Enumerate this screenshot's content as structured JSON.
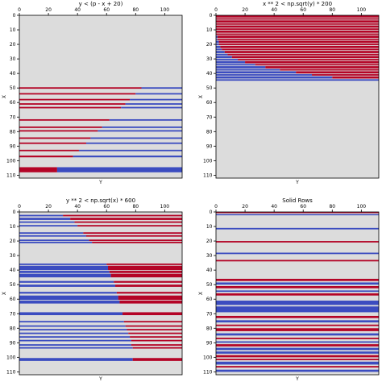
{
  "colors": {
    "background_fill": "#dcdcdc",
    "red": "#b40426",
    "blue": "#3b4cc0",
    "axes_edge": "#000000"
  },
  "chart_data": [
    {
      "type": "heatmap",
      "title": "y < (p - x + 20)",
      "xlabel": "Y",
      "ylabel": "X",
      "xlim": [
        0,
        112
      ],
      "ylim": [
        0,
        112
      ],
      "x_ticks": [
        0,
        20,
        40,
        60,
        80,
        100
      ],
      "y_ticks": [
        0,
        10,
        20,
        30,
        40,
        50,
        60,
        70,
        80,
        90,
        100,
        110
      ],
      "x_axis_position": "top",
      "grid": false,
      "rows": [
        {
          "y": 49.5,
          "h": 1,
          "red_end": 84
        },
        {
          "y": 53.5,
          "h": 1,
          "red_end": 80
        },
        {
          "y": 57.5,
          "h": 1,
          "red_end": 76
        },
        {
          "y": 60.5,
          "h": 1,
          "red_end": 73
        },
        {
          "y": 63,
          "h": 1,
          "red_end": 70
        },
        {
          "y": 71.5,
          "h": 1,
          "red_end": 62
        },
        {
          "y": 76.5,
          "h": 1,
          "red_end": 57
        },
        {
          "y": 79,
          "h": 1,
          "red_end": 54
        },
        {
          "y": 84,
          "h": 1,
          "red_end": 49
        },
        {
          "y": 87.5,
          "h": 1,
          "red_end": 46
        },
        {
          "y": 92.5,
          "h": 1,
          "red_end": 41
        },
        {
          "y": 96.5,
          "h": 1.2,
          "red_end": 37
        },
        {
          "y": 104.5,
          "h": 3.5,
          "red_end": 26
        }
      ]
    },
    {
      "type": "heatmap",
      "title": "x ** 2 < np.sqrt(y) * 200",
      "xlabel": "Y",
      "ylabel": "X",
      "xlim": [
        0,
        112
      ],
      "ylim": [
        0,
        112
      ],
      "x_ticks": [
        0,
        20,
        40,
        60,
        80,
        100
      ],
      "y_ticks": [
        0,
        10,
        20,
        30,
        40,
        50,
        60,
        70,
        80,
        90,
        100,
        110
      ],
      "x_axis_position": "top",
      "grid": false,
      "rows": [
        {
          "y": 0,
          "h": 1.5,
          "blue_end": 0
        },
        {
          "y": 2,
          "h": 1,
          "blue_end": 0
        },
        {
          "y": 3.5,
          "h": 1.5,
          "blue_end": 0
        },
        {
          "y": 5.5,
          "h": 1,
          "blue_end": 0
        },
        {
          "y": 7,
          "h": 1.5,
          "blue_end": 0
        },
        {
          "y": 9,
          "h": 1,
          "blue_end": 0
        },
        {
          "y": 10.5,
          "h": 1.5,
          "blue_end": 0
        },
        {
          "y": 12.5,
          "h": 1,
          "blue_end": 0
        },
        {
          "y": 14,
          "h": 1.5,
          "blue_end": 1
        },
        {
          "y": 16,
          "h": 1,
          "blue_end": 1
        },
        {
          "y": 17.5,
          "h": 1.5,
          "blue_end": 2
        },
        {
          "y": 19.5,
          "h": 1,
          "blue_end": 2
        },
        {
          "y": 21,
          "h": 1.5,
          "blue_end": 3
        },
        {
          "y": 23,
          "h": 1,
          "blue_end": 4
        },
        {
          "y": 24.5,
          "h": 1.5,
          "blue_end": 6
        },
        {
          "y": 26.5,
          "h": 1,
          "blue_end": 8
        },
        {
          "y": 28,
          "h": 1.5,
          "blue_end": 11
        },
        {
          "y": 30,
          "h": 1,
          "blue_end": 15
        },
        {
          "y": 31.5,
          "h": 1.5,
          "blue_end": 20
        },
        {
          "y": 33.5,
          "h": 1,
          "blue_end": 27
        },
        {
          "y": 35,
          "h": 1.5,
          "blue_end": 34
        },
        {
          "y": 37,
          "h": 1,
          "blue_end": 44
        },
        {
          "y": 38.5,
          "h": 1.5,
          "blue_end": 55
        },
        {
          "y": 40.5,
          "h": 1,
          "blue_end": 66
        },
        {
          "y": 42,
          "h": 1.5,
          "blue_end": 80
        },
        {
          "y": 44,
          "h": 1,
          "blue_end": 112
        }
      ]
    },
    {
      "type": "heatmap",
      "title": "y ** 2 < np.sqrt(x) * 600",
      "xlabel": "Y",
      "ylabel": "X",
      "xlim": [
        0,
        112
      ],
      "ylim": [
        0,
        112
      ],
      "x_ticks": [
        0,
        20,
        40,
        60,
        80,
        100
      ],
      "y_ticks": [
        0,
        10,
        20,
        30,
        40,
        50,
        60,
        70,
        80,
        90,
        100,
        110
      ],
      "x_axis_position": "top",
      "grid": false,
      "rows": [
        {
          "y": 2,
          "h": 1,
          "blue_end": 30
        },
        {
          "y": 4,
          "h": 1.5,
          "blue_end": 35
        },
        {
          "y": 6.5,
          "h": 1,
          "blue_end": 38
        },
        {
          "y": 9,
          "h": 1,
          "blue_end": 40
        },
        {
          "y": 14,
          "h": 1,
          "blue_end": 44
        },
        {
          "y": 16,
          "h": 1,
          "blue_end": 46
        },
        {
          "y": 19,
          "h": 1,
          "blue_end": 48
        },
        {
          "y": 20.5,
          "h": 1,
          "blue_end": 50
        },
        {
          "y": 35.5,
          "h": 1,
          "blue_end": 60
        },
        {
          "y": 37,
          "h": 3,
          "blue_end": 61
        },
        {
          "y": 40.5,
          "h": 1.5,
          "blue_end": 62
        },
        {
          "y": 42.5,
          "h": 2.5,
          "blue_end": 63
        },
        {
          "y": 47.5,
          "h": 1.2,
          "blue_end": 65
        },
        {
          "y": 50,
          "h": 1.5,
          "blue_end": 66
        },
        {
          "y": 55,
          "h": 1.2,
          "blue_end": 67
        },
        {
          "y": 57.5,
          "h": 3,
          "blue_end": 68
        },
        {
          "y": 61,
          "h": 2,
          "blue_end": 69
        },
        {
          "y": 69,
          "h": 2,
          "blue_end": 71
        },
        {
          "y": 75,
          "h": 1,
          "blue_end": 72
        },
        {
          "y": 78,
          "h": 1,
          "blue_end": 73
        },
        {
          "y": 80.5,
          "h": 1,
          "blue_end": 74
        },
        {
          "y": 83,
          "h": 1,
          "blue_end": 75
        },
        {
          "y": 85.5,
          "h": 1,
          "blue_end": 76
        },
        {
          "y": 88,
          "h": 1,
          "blue_end": 77
        },
        {
          "y": 91,
          "h": 1,
          "blue_end": 77
        },
        {
          "y": 93,
          "h": 1,
          "blue_end": 78
        },
        {
          "y": 100.5,
          "h": 2,
          "blue_end": 78
        }
      ]
    },
    {
      "type": "heatmap",
      "title": "Solid Rows",
      "xlabel": "Y",
      "ylabel": "X",
      "xlim": [
        0,
        112
      ],
      "ylim": [
        0,
        112
      ],
      "x_ticks": [
        0,
        20,
        40,
        60,
        80,
        100
      ],
      "y_ticks": [
        0,
        10,
        20,
        30,
        40,
        50,
        60,
        70,
        80,
        90,
        100,
        110
      ],
      "x_axis_position": "top",
      "grid": false,
      "rows": [
        {
          "y": 0,
          "h": 0.8,
          "color": "red"
        },
        {
          "y": 1.5,
          "h": 0.8,
          "color": "blue"
        },
        {
          "y": 11,
          "h": 1,
          "color": "blue"
        },
        {
          "y": 20,
          "h": 1,
          "color": "red"
        },
        {
          "y": 28,
          "h": 1,
          "color": "blue"
        },
        {
          "y": 33,
          "h": 1,
          "color": "red"
        },
        {
          "y": 46,
          "h": 1.5,
          "color": "red"
        },
        {
          "y": 48.5,
          "h": 1.5,
          "color": "blue"
        },
        {
          "y": 51,
          "h": 1.5,
          "color": "red"
        },
        {
          "y": 54,
          "h": 1,
          "color": "blue"
        },
        {
          "y": 56,
          "h": 1.5,
          "color": "red"
        },
        {
          "y": 61,
          "h": 3,
          "color": "blue"
        },
        {
          "y": 65,
          "h": 4,
          "color": "blue"
        },
        {
          "y": 71.5,
          "h": 1.5,
          "color": "red"
        },
        {
          "y": 74.5,
          "h": 1.5,
          "color": "blue"
        },
        {
          "y": 77.5,
          "h": 1,
          "color": "red"
        },
        {
          "y": 80,
          "h": 2,
          "color": "red"
        },
        {
          "y": 83.5,
          "h": 1.5,
          "color": "blue"
        },
        {
          "y": 86.5,
          "h": 1,
          "color": "red"
        },
        {
          "y": 89,
          "h": 1,
          "color": "blue"
        },
        {
          "y": 91,
          "h": 1.5,
          "color": "red"
        },
        {
          "y": 93.5,
          "h": 1.5,
          "color": "blue"
        },
        {
          "y": 96,
          "h": 1.5,
          "color": "blue"
        },
        {
          "y": 98.5,
          "h": 1.5,
          "color": "red"
        },
        {
          "y": 101,
          "h": 1,
          "color": "red"
        },
        {
          "y": 103,
          "h": 2,
          "color": "blue"
        },
        {
          "y": 106,
          "h": 1,
          "color": "red"
        },
        {
          "y": 108.5,
          "h": 1.5,
          "color": "blue"
        }
      ]
    }
  ]
}
